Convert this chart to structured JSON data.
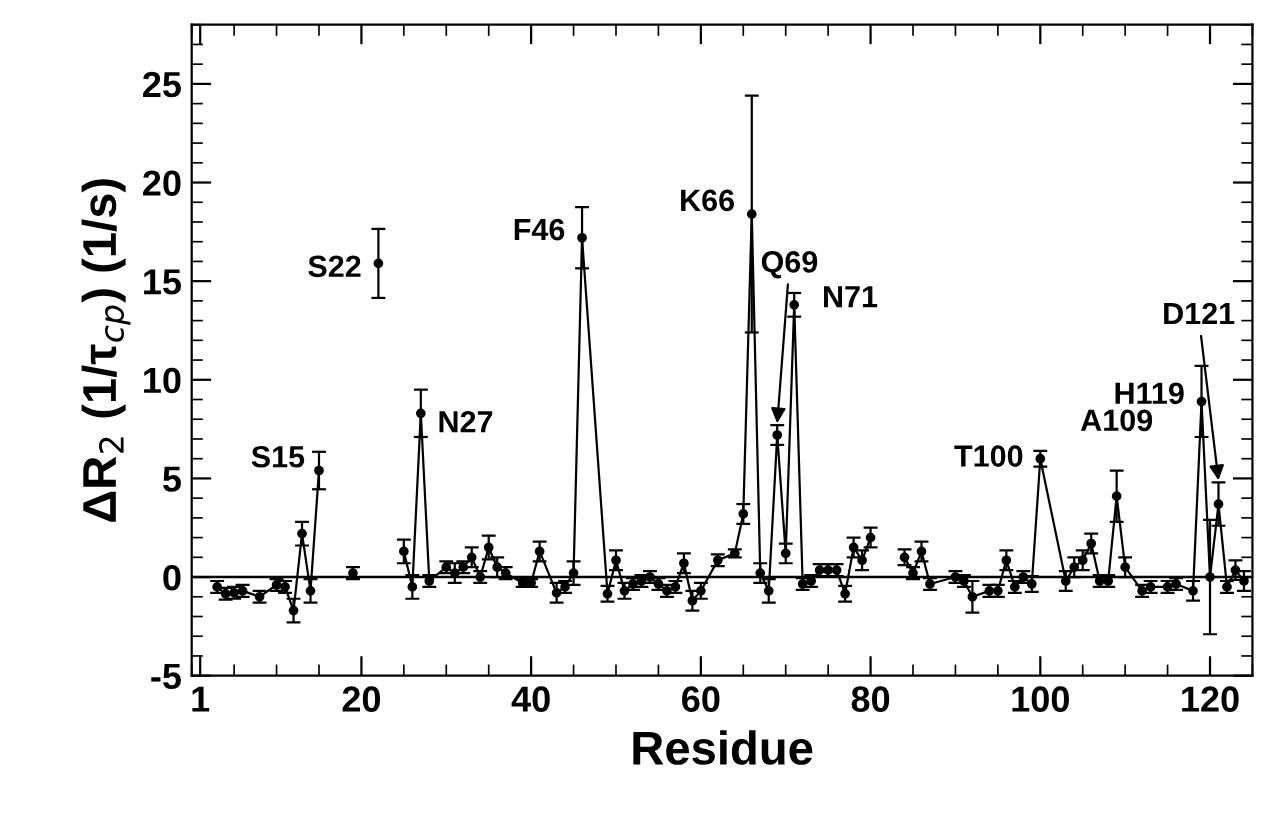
{
  "chart_data": {
    "type": "line",
    "xlabel": "Residue",
    "ylabel": "ΔR$_{2}$ (1/τ$_{cp}$) (1/s)",
    "x": [
      3,
      4,
      5,
      6,
      8,
      10,
      11,
      12,
      13,
      14,
      15,
      17,
      19,
      20,
      22,
      23,
      25,
      26,
      27,
      28,
      30,
      31,
      32,
      33,
      34,
      35,
      36,
      37,
      39,
      40,
      41,
      43,
      44,
      45,
      46,
      49,
      50,
      51,
      52,
      53,
      54,
      55,
      56,
      57,
      58,
      59,
      60,
      62,
      64,
      65,
      66,
      67,
      68,
      69,
      70,
      71,
      72,
      73,
      74,
      75,
      76,
      77,
      78,
      79,
      80,
      82,
      84,
      85,
      86,
      87,
      90,
      91,
      92,
      94,
      95,
      96,
      97,
      98,
      99,
      100,
      103,
      104,
      105,
      106,
      107,
      108,
      109,
      110,
      112,
      113,
      115,
      116,
      118,
      119,
      120,
      121,
      122,
      123,
      124
    ],
    "series": [
      {
        "color": "#000000",
        "values": [
          -0.5,
          -0.85,
          -0.8,
          -0.7,
          -1.0,
          -0.4,
          -0.5,
          -1.7,
          2.2,
          -0.7,
          5.4,
          null,
          0.2,
          null,
          15.9,
          null,
          1.3,
          -0.5,
          8.3,
          -0.2,
          0.5,
          0.2,
          0.5,
          1.0,
          0,
          1.5,
          0.5,
          0.2,
          -0.3,
          -0.3,
          1.3,
          -0.8,
          -0.5,
          0.2,
          17.2,
          -0.85,
          0.85,
          -0.7,
          -0.35,
          -0.2,
          0,
          -0.35,
          -0.7,
          -0.5,
          0.7,
          -1.2,
          -0.7,
          0.85,
          1.2,
          3.2,
          18.4,
          0.2,
          -0.7,
          7.2,
          1.2,
          13.8,
          -0.35,
          -0.2,
          0.35,
          0.35,
          0.35,
          -0.85,
          1.5,
          0.85,
          2.0,
          null,
          1.0,
          0.2,
          1.3,
          -0.35,
          0,
          -0.2,
          -1.0,
          -0.7,
          -0.7,
          0.85,
          -0.5,
          0,
          -0.35,
          6.0,
          -0.2,
          0.5,
          0.85,
          1.7,
          -0.2,
          -0.2,
          4.1,
          0.5,
          -0.7,
          -0.5,
          -0.5,
          -0.35,
          -0.7,
          8.9,
          0,
          3.7,
          -0.5,
          0.35,
          -0.2
        ],
        "errors": [
          0.3,
          0.3,
          0.3,
          0.3,
          0.3,
          0.3,
          0.3,
          0.6,
          0.6,
          0.6,
          0.95,
          null,
          0.3,
          null,
          1.75,
          null,
          0.6,
          0.6,
          1.2,
          0.3,
          0.3,
          0.5,
          0.3,
          0.5,
          0.3,
          0.6,
          0.5,
          0.3,
          0.2,
          0.2,
          0.5,
          0.5,
          0.3,
          0.6,
          1.55,
          0.4,
          0.5,
          0.4,
          0.3,
          0.3,
          0.3,
          0.3,
          0.3,
          0.3,
          0.5,
          0.5,
          0.4,
          0.3,
          0.2,
          0.5,
          6.0,
          0.5,
          0.6,
          0.5,
          0.5,
          0.6,
          0.3,
          0.3,
          0.3,
          0.3,
          0.3,
          0.4,
          0.5,
          0.5,
          0.5,
          null,
          0.4,
          0.3,
          0.5,
          0.3,
          0.3,
          0.3,
          0.8,
          0.3,
          0.3,
          0.5,
          0.3,
          0.3,
          0.4,
          0.4,
          0.5,
          0.5,
          0.5,
          0.5,
          0.3,
          0.3,
          1.3,
          0.5,
          0.3,
          0.3,
          0.3,
          0.3,
          0.5,
          1.8,
          2.9,
          1.1,
          0.3,
          0.5,
          0.5
        ]
      }
    ],
    "xlim": [
      0,
      125
    ],
    "ylim": [
      -5,
      28
    ],
    "xticks": [
      1,
      20,
      40,
      60,
      80,
      100,
      120
    ],
    "yticks": [
      -5,
      0,
      5,
      10,
      15,
      20,
      25
    ],
    "marker": "circle",
    "grid": false,
    "legend": false,
    "ref_lines": [
      {
        "axis": "y",
        "value": 0,
        "color": "#000000"
      }
    ],
    "annotations": [
      {
        "text": "S15",
        "x": 15,
        "y": 5.4
      },
      {
        "text": "S22",
        "x": 22,
        "y": 15.9
      },
      {
        "text": "N27",
        "x": 27,
        "y": 8.3
      },
      {
        "text": "F46",
        "x": 46,
        "y": 17.2
      },
      {
        "text": "K66",
        "x": 66,
        "y": 18.4
      },
      {
        "text": "Q69",
        "x": 69,
        "y": 7.8
      },
      {
        "text": "N71",
        "x": 71,
        "y": 13.8
      },
      {
        "text": "T100",
        "x": 100,
        "y": 6.0
      },
      {
        "text": "A109",
        "x": 109,
        "y": 5.4
      },
      {
        "text": "H119",
        "x": 119,
        "y": 8.9
      },
      {
        "text": "D121",
        "x": 121,
        "y": 4.9
      }
    ]
  }
}
